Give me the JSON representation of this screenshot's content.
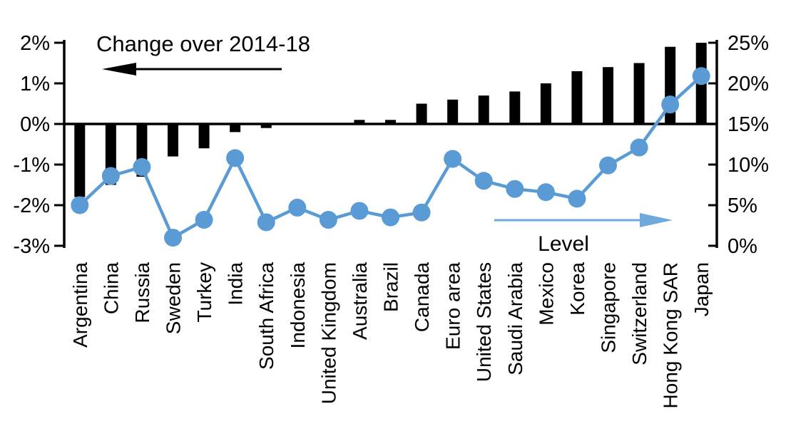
{
  "chart_data": {
    "type": "combo",
    "title": "Change over 2014-18",
    "grid": "off",
    "legend": "none",
    "categories": [
      "Argentina",
      "China",
      "Russia",
      "Sweden",
      "Turkey",
      "India",
      "South Africa",
      "Indonesia",
      "United Kingdom",
      "Australia",
      "Brazil",
      "Canada",
      "Euro area",
      "United States",
      "Saudi Arabia",
      "Mexico",
      "Korea",
      "Singapore",
      "Switzerland",
      "Hong Kong SAR",
      "Japan"
    ],
    "series": [
      {
        "name": "Change over 2014-18",
        "type": "bar",
        "axis": "left",
        "color": "#000000",
        "values": [
          -1.8,
          -1.5,
          -1.3,
          -0.8,
          -0.6,
          -0.2,
          -0.1,
          0,
          0,
          0.1,
          0.1,
          0.5,
          0.6,
          0.7,
          0.8,
          1.0,
          1.3,
          1.4,
          1.5,
          1.9,
          2.0
        ]
      },
      {
        "name": "Level",
        "type": "line",
        "axis": "right",
        "color": "#5B9BD5",
        "values": [
          5.0,
          8.6,
          9.7,
          1.0,
          3.2,
          10.8,
          2.9,
          4.7,
          3.2,
          4.3,
          3.5,
          4.1,
          10.7,
          8.0,
          7.0,
          6.6,
          5.8,
          9.9,
          12.1,
          17.4,
          20.9
        ]
      }
    ],
    "left_axis": {
      "min": -3,
      "max": 2,
      "tick_values": [
        2,
        1,
        0,
        -1,
        -2,
        -3
      ],
      "tick_labels": [
        "2%",
        "1%",
        "0%",
        "-1%",
        "-2%",
        "-3%"
      ]
    },
    "right_axis": {
      "min": 0,
      "max": 25,
      "tick_values": [
        25,
        20,
        15,
        10,
        5,
        0
      ],
      "tick_labels": [
        "25%",
        "20%",
        "15%",
        "10%",
        "5%",
        "0%"
      ]
    },
    "annotations": {
      "bar_series_label": "Change over 2014-18",
      "line_series_label": "Level",
      "bar_arrow_direction": "left",
      "line_arrow_direction": "right"
    },
    "colors": {
      "bar": "#000000",
      "line": "#5B9BD5",
      "marker": "#5B9BD5",
      "arrow_blue": "#6FA8DC",
      "axis": "#000000",
      "text": "#000000",
      "background": "#ffffff"
    }
  }
}
